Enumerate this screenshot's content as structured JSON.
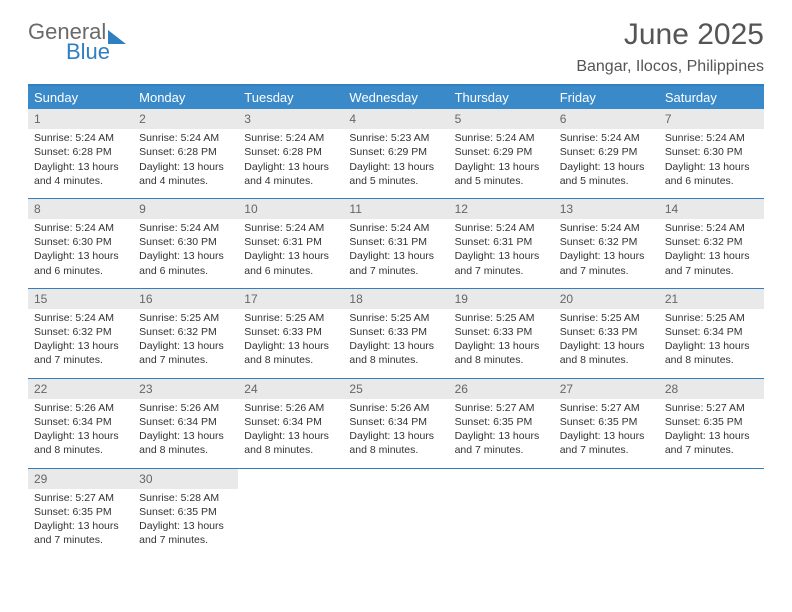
{
  "logo": {
    "line1": "General",
    "line2": "Blue"
  },
  "title": "June 2025",
  "location": "Bangar, Ilocos, Philippines",
  "colors": {
    "header_bg": "#3a89c9",
    "header_text": "#ffffff",
    "border": "#2f7fc1",
    "daynum_bg": "#e9e9e9",
    "daynum_text": "#666666",
    "body_text": "#333333",
    "title_text": "#555555",
    "logo_gray": "#6a6a6a",
    "logo_blue": "#2f7fc1"
  },
  "layout": {
    "columns": [
      "Sunday",
      "Monday",
      "Tuesday",
      "Wednesday",
      "Thursday",
      "Friday",
      "Saturday"
    ],
    "cell_font_size_pt": 8,
    "header_font_size_pt": 10,
    "title_font_size_pt": 22
  },
  "weeks": [
    [
      {
        "n": "1",
        "sr": "Sunrise: 5:24 AM",
        "ss": "Sunset: 6:28 PM",
        "dl": "Daylight: 13 hours and 4 minutes."
      },
      {
        "n": "2",
        "sr": "Sunrise: 5:24 AM",
        "ss": "Sunset: 6:28 PM",
        "dl": "Daylight: 13 hours and 4 minutes."
      },
      {
        "n": "3",
        "sr": "Sunrise: 5:24 AM",
        "ss": "Sunset: 6:28 PM",
        "dl": "Daylight: 13 hours and 4 minutes."
      },
      {
        "n": "4",
        "sr": "Sunrise: 5:23 AM",
        "ss": "Sunset: 6:29 PM",
        "dl": "Daylight: 13 hours and 5 minutes."
      },
      {
        "n": "5",
        "sr": "Sunrise: 5:24 AM",
        "ss": "Sunset: 6:29 PM",
        "dl": "Daylight: 13 hours and 5 minutes."
      },
      {
        "n": "6",
        "sr": "Sunrise: 5:24 AM",
        "ss": "Sunset: 6:29 PM",
        "dl": "Daylight: 13 hours and 5 minutes."
      },
      {
        "n": "7",
        "sr": "Sunrise: 5:24 AM",
        "ss": "Sunset: 6:30 PM",
        "dl": "Daylight: 13 hours and 6 minutes."
      }
    ],
    [
      {
        "n": "8",
        "sr": "Sunrise: 5:24 AM",
        "ss": "Sunset: 6:30 PM",
        "dl": "Daylight: 13 hours and 6 minutes."
      },
      {
        "n": "9",
        "sr": "Sunrise: 5:24 AM",
        "ss": "Sunset: 6:30 PM",
        "dl": "Daylight: 13 hours and 6 minutes."
      },
      {
        "n": "10",
        "sr": "Sunrise: 5:24 AM",
        "ss": "Sunset: 6:31 PM",
        "dl": "Daylight: 13 hours and 6 minutes."
      },
      {
        "n": "11",
        "sr": "Sunrise: 5:24 AM",
        "ss": "Sunset: 6:31 PM",
        "dl": "Daylight: 13 hours and 7 minutes."
      },
      {
        "n": "12",
        "sr": "Sunrise: 5:24 AM",
        "ss": "Sunset: 6:31 PM",
        "dl": "Daylight: 13 hours and 7 minutes."
      },
      {
        "n": "13",
        "sr": "Sunrise: 5:24 AM",
        "ss": "Sunset: 6:32 PM",
        "dl": "Daylight: 13 hours and 7 minutes."
      },
      {
        "n": "14",
        "sr": "Sunrise: 5:24 AM",
        "ss": "Sunset: 6:32 PM",
        "dl": "Daylight: 13 hours and 7 minutes."
      }
    ],
    [
      {
        "n": "15",
        "sr": "Sunrise: 5:24 AM",
        "ss": "Sunset: 6:32 PM",
        "dl": "Daylight: 13 hours and 7 minutes."
      },
      {
        "n": "16",
        "sr": "Sunrise: 5:25 AM",
        "ss": "Sunset: 6:32 PM",
        "dl": "Daylight: 13 hours and 7 minutes."
      },
      {
        "n": "17",
        "sr": "Sunrise: 5:25 AM",
        "ss": "Sunset: 6:33 PM",
        "dl": "Daylight: 13 hours and 8 minutes."
      },
      {
        "n": "18",
        "sr": "Sunrise: 5:25 AM",
        "ss": "Sunset: 6:33 PM",
        "dl": "Daylight: 13 hours and 8 minutes."
      },
      {
        "n": "19",
        "sr": "Sunrise: 5:25 AM",
        "ss": "Sunset: 6:33 PM",
        "dl": "Daylight: 13 hours and 8 minutes."
      },
      {
        "n": "20",
        "sr": "Sunrise: 5:25 AM",
        "ss": "Sunset: 6:33 PM",
        "dl": "Daylight: 13 hours and 8 minutes."
      },
      {
        "n": "21",
        "sr": "Sunrise: 5:25 AM",
        "ss": "Sunset: 6:34 PM",
        "dl": "Daylight: 13 hours and 8 minutes."
      }
    ],
    [
      {
        "n": "22",
        "sr": "Sunrise: 5:26 AM",
        "ss": "Sunset: 6:34 PM",
        "dl": "Daylight: 13 hours and 8 minutes."
      },
      {
        "n": "23",
        "sr": "Sunrise: 5:26 AM",
        "ss": "Sunset: 6:34 PM",
        "dl": "Daylight: 13 hours and 8 minutes."
      },
      {
        "n": "24",
        "sr": "Sunrise: 5:26 AM",
        "ss": "Sunset: 6:34 PM",
        "dl": "Daylight: 13 hours and 8 minutes."
      },
      {
        "n": "25",
        "sr": "Sunrise: 5:26 AM",
        "ss": "Sunset: 6:34 PM",
        "dl": "Daylight: 13 hours and 8 minutes."
      },
      {
        "n": "26",
        "sr": "Sunrise: 5:27 AM",
        "ss": "Sunset: 6:35 PM",
        "dl": "Daylight: 13 hours and 7 minutes."
      },
      {
        "n": "27",
        "sr": "Sunrise: 5:27 AM",
        "ss": "Sunset: 6:35 PM",
        "dl": "Daylight: 13 hours and 7 minutes."
      },
      {
        "n": "28",
        "sr": "Sunrise: 5:27 AM",
        "ss": "Sunset: 6:35 PM",
        "dl": "Daylight: 13 hours and 7 minutes."
      }
    ],
    [
      {
        "n": "29",
        "sr": "Sunrise: 5:27 AM",
        "ss": "Sunset: 6:35 PM",
        "dl": "Daylight: 13 hours and 7 minutes."
      },
      {
        "n": "30",
        "sr": "Sunrise: 5:28 AM",
        "ss": "Sunset: 6:35 PM",
        "dl": "Daylight: 13 hours and 7 minutes."
      },
      null,
      null,
      null,
      null,
      null
    ]
  ]
}
